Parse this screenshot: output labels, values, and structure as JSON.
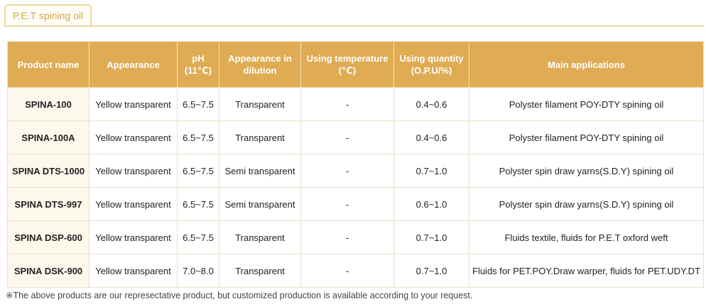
{
  "section_tab": {
    "label": "P.E.T spining oil"
  },
  "table": {
    "headers": [
      "Product name",
      "Appearance",
      "pH (11℃)",
      "Appearance in dilution",
      "Using temperature (℃)",
      "Using quantity (O.P.U/%)",
      "Main applications"
    ],
    "rows": [
      [
        "SPINA-100",
        "Yellow transparent",
        "6.5~7.5",
        "Transparent",
        "-",
        "0.4~0.6",
        "Polyster filament POY-DTY spining oil"
      ],
      [
        "SPINA-100A",
        "Yellow transparent",
        "6.5~7.5",
        "Transparent",
        "-",
        "0.4~0.6",
        "Polyster filament POY-DTY spining oil"
      ],
      [
        "SPINA DTS-1000",
        "Yellow transparent",
        "6.5~7.5",
        "Semi transparent",
        "-",
        "0.7~1.0",
        "Polyster spin draw yarns(S.D.Y) spining oil"
      ],
      [
        "SPINA DTS-997",
        "Yellow transparent",
        "6.5~7.5",
        "Semi transparent",
        "-",
        "0.6~1.0",
        "Polyster spin draw yarns(S.D.Y) spining oil"
      ],
      [
        "SPINA DSP-600",
        "Yellow transparent",
        "6.5~7.5",
        "Transparent",
        "-",
        "0.7~1.0",
        "Fluids textile, fluids for P.E.T oxford weft"
      ],
      [
        "SPINA DSK-900",
        "Yellow transparent",
        "7.0~8.0",
        "Transparent",
        "-",
        "0.7~1.0",
        "Fluids for PET.POY.Draw warper, fluids for PET.UDY.DT"
      ]
    ]
  },
  "footnote": "※The above products are our represectative product, but customized production is available according to your request."
}
